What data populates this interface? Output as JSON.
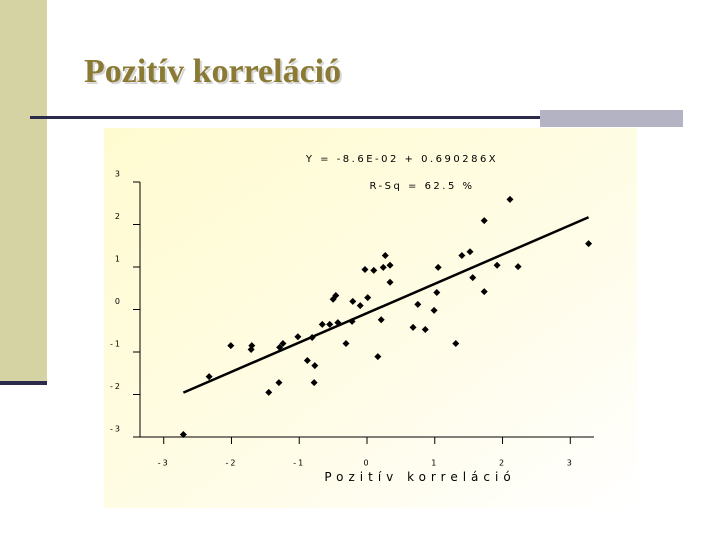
{
  "slide": {
    "title": "Pozitív korreláció"
  },
  "chart_data": {
    "type": "scatter",
    "equation": "Y = -8.6E-02 + 0.690286X",
    "r_squared": "R-Sq = 62.5 %",
    "x_label": "Pozitív korreláció",
    "fit": {
      "intercept": -0.086,
      "slope": 0.690286
    },
    "color": "#000000",
    "xlim": [
      -3.35,
      3.35
    ],
    "xticks": [
      -3,
      -2,
      -1,
      0,
      1,
      2,
      3
    ],
    "ylim": [
      -3,
      3
    ],
    "yticks": [
      3,
      2,
      1,
      0,
      -1,
      -2,
      -3
    ],
    "x": [
      -2.71,
      -2.33,
      -2.01,
      -1.7,
      -1.71,
      -1.45,
      -1.3,
      -1.29,
      -1.24,
      -1.02,
      -0.88,
      -0.77,
      -0.78,
      -0.81,
      -0.66,
      -0.55,
      -0.5,
      -0.46,
      -0.43,
      -0.31,
      -0.22,
      -0.21,
      -0.1,
      0.01,
      -0.03,
      0.1,
      0.16,
      0.21,
      0.24,
      0.27,
      0.34,
      0.34,
      0.68,
      0.75,
      0.86,
      0.99,
      1.03,
      1.05,
      1.31,
      1.4,
      1.52,
      1.56,
      1.73,
      1.73,
      1.92,
      2.11,
      2.23,
      3.27
    ],
    "values": [
      -2.94,
      -1.58,
      -0.85,
      -0.85,
      -0.94,
      -1.95,
      -1.72,
      -0.89,
      -0.8,
      -0.64,
      -1.2,
      -1.32,
      -1.72,
      -0.66,
      -0.35,
      -0.35,
      0.24,
      0.33,
      -0.31,
      -0.8,
      -0.28,
      0.19,
      0.09,
      0.28,
      0.94,
      0.92,
      -1.11,
      -0.24,
      0.99,
      1.27,
      1.04,
      0.64,
      -0.42,
      0.12,
      -0.47,
      -0.02,
      0.4,
      0.99,
      -0.8,
      1.27,
      1.36,
      0.75,
      0.42,
      2.09,
      1.04,
      2.59,
      1.01,
      1.55
    ]
  }
}
